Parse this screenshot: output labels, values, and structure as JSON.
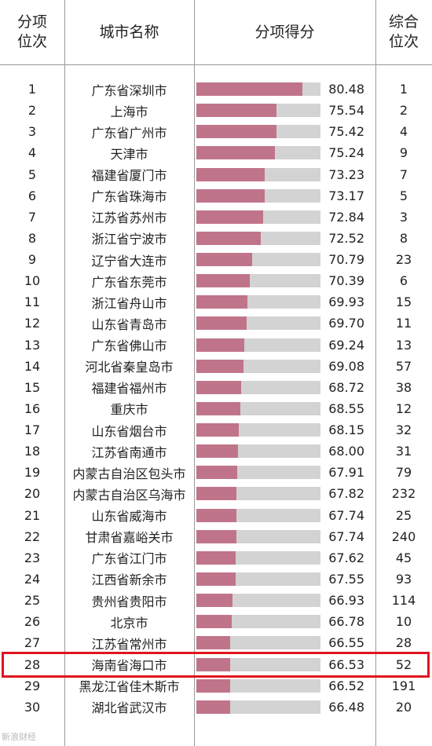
{
  "table": {
    "headers": {
      "rank": "分项\n位次",
      "city": "城市名称",
      "score": "分项得分",
      "overall": "综合\n位次"
    }
  },
  "chart_data": {
    "type": "bar",
    "xlim": [
      60,
      84
    ],
    "highlight_rank": 28,
    "colors": {
      "bar": "#c0748a",
      "track": "#d3d3d3",
      "highlight": "#e0141e"
    },
    "rows": [
      {
        "rank": "1",
        "city": "广东省深圳市",
        "score": 80.48,
        "score_text": "80.48",
        "overall": "1"
      },
      {
        "rank": "2",
        "city": "上海市",
        "score": 75.54,
        "score_text": "75.54",
        "overall": "2"
      },
      {
        "rank": "3",
        "city": "广东省广州市",
        "score": 75.42,
        "score_text": "75.42",
        "overall": "4"
      },
      {
        "rank": "4",
        "city": "天津市",
        "score": 75.24,
        "score_text": "75.24",
        "overall": "9"
      },
      {
        "rank": "5",
        "city": "福建省厦门市",
        "score": 73.23,
        "score_text": "73.23",
        "overall": "7"
      },
      {
        "rank": "6",
        "city": "广东省珠海市",
        "score": 73.17,
        "score_text": "73.17",
        "overall": "5"
      },
      {
        "rank": "7",
        "city": "江苏省苏州市",
        "score": 72.84,
        "score_text": "72.84",
        "overall": "3"
      },
      {
        "rank": "8",
        "city": "浙江省宁波市",
        "score": 72.52,
        "score_text": "72.52",
        "overall": "8"
      },
      {
        "rank": "9",
        "city": "辽宁省大连市",
        "score": 70.79,
        "score_text": "70.79",
        "overall": "23"
      },
      {
        "rank": "10",
        "city": "广东省东莞市",
        "score": 70.39,
        "score_text": "70.39",
        "overall": "6"
      },
      {
        "rank": "11",
        "city": "浙江省舟山市",
        "score": 69.93,
        "score_text": "69.93",
        "overall": "15"
      },
      {
        "rank": "12",
        "city": "山东省青岛市",
        "score": 69.7,
        "score_text": "69.70",
        "overall": "11"
      },
      {
        "rank": "13",
        "city": "广东省佛山市",
        "score": 69.24,
        "score_text": "69.24",
        "overall": "13"
      },
      {
        "rank": "14",
        "city": "河北省秦皇岛市",
        "score": 69.08,
        "score_text": "69.08",
        "overall": "57"
      },
      {
        "rank": "15",
        "city": "福建省福州市",
        "score": 68.72,
        "score_text": "68.72",
        "overall": "38"
      },
      {
        "rank": "16",
        "city": "重庆市",
        "score": 68.55,
        "score_text": "68.55",
        "overall": "12"
      },
      {
        "rank": "17",
        "city": "山东省烟台市",
        "score": 68.15,
        "score_text": "68.15",
        "overall": "32"
      },
      {
        "rank": "18",
        "city": "江苏省南通市",
        "score": 68.0,
        "score_text": "68.00",
        "overall": "31"
      },
      {
        "rank": "19",
        "city": "内蒙古自治区包头市",
        "score": 67.91,
        "score_text": "67.91",
        "overall": "79"
      },
      {
        "rank": "20",
        "city": "内蒙古自治区乌海市",
        "score": 67.82,
        "score_text": "67.82",
        "overall": "232"
      },
      {
        "rank": "21",
        "city": "山东省威海市",
        "score": 67.74,
        "score_text": "67.74",
        "overall": "25"
      },
      {
        "rank": "22",
        "city": "甘肃省嘉峪关市",
        "score": 67.74,
        "score_text": "67.74",
        "overall": "240"
      },
      {
        "rank": "23",
        "city": "广东省江门市",
        "score": 67.62,
        "score_text": "67.62",
        "overall": "45"
      },
      {
        "rank": "24",
        "city": "江西省新余市",
        "score": 67.55,
        "score_text": "67.55",
        "overall": "93"
      },
      {
        "rank": "25",
        "city": "贵州省贵阳市",
        "score": 66.93,
        "score_text": "66.93",
        "overall": "114"
      },
      {
        "rank": "26",
        "city": "北京市",
        "score": 66.78,
        "score_text": "66.78",
        "overall": "10"
      },
      {
        "rank": "27",
        "city": "江苏省常州市",
        "score": 66.55,
        "score_text": "66.55",
        "overall": "28"
      },
      {
        "rank": "28",
        "city": "海南省海口市",
        "score": 66.53,
        "score_text": "66.53",
        "overall": "52"
      },
      {
        "rank": "29",
        "city": "黑龙江省佳木斯市",
        "score": 66.52,
        "score_text": "66.52",
        "overall": "191"
      },
      {
        "rank": "30",
        "city": "湖北省武汉市",
        "score": 66.48,
        "score_text": "66.48",
        "overall": "20"
      }
    ]
  },
  "watermark": "新浪财经"
}
